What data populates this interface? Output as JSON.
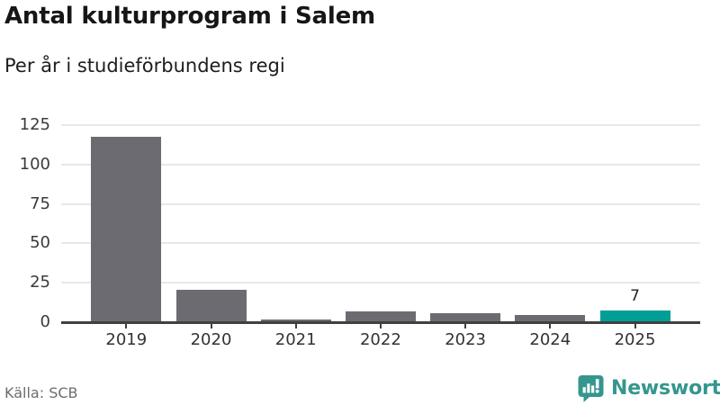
{
  "page": {
    "title": "Antal kulturprogram i Salem",
    "subtitle": "Per år i studieförbundens regi"
  },
  "chart_data": {
    "type": "bar",
    "title": "Antal kulturprogram i Salem",
    "subtitle": "Per år i studieförbundens regi",
    "categories": [
      "2019",
      "2020",
      "2021",
      "2022",
      "2023",
      "2024",
      "2025"
    ],
    "values": [
      117,
      20,
      1,
      6,
      5,
      4,
      7
    ],
    "bar_colors": [
      "#6c6b71",
      "#6c6b71",
      "#6c6b71",
      "#6c6b71",
      "#6c6b71",
      "#6c6b71",
      "#009e95"
    ],
    "value_labels": [
      "",
      "",
      "",
      "",
      "",
      "",
      "7"
    ],
    "xlabel": "",
    "ylabel": "",
    "ylim": [
      0,
      125
    ],
    "yticks": [
      0,
      25,
      50,
      75,
      100,
      125
    ],
    "grid": true,
    "legend": "none",
    "highlight_color": "#009e95",
    "default_color": "#6c6b71"
  },
  "footer": {
    "source": "Källa: SCB",
    "brand": "Newsworthy"
  },
  "colors": {
    "background": "#ffffff",
    "bar_gray": "#6c6b71",
    "bar_teal": "#009e95",
    "gridline": "#e8e8e8",
    "axis": "#404040",
    "title_text": "#161616",
    "tick_text": "#3b3b3b",
    "source_text": "#6d6d6d",
    "brand_teal": "#35968e"
  },
  "icons": {
    "brand_logo": "bar-chart-speech-bubble-icon"
  }
}
